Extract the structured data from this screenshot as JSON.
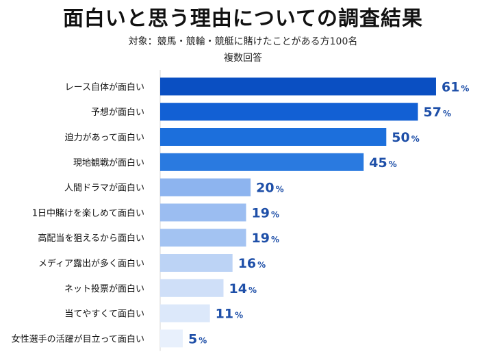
{
  "chart_data": {
    "type": "bar",
    "orientation": "horizontal",
    "title": "面白いと思う理由についての調査結果",
    "subtitle": "対象：競馬・競輪・競艇に賭けたことがある方100名",
    "note": "複数回答",
    "unit": "%",
    "categories": [
      "レース自体が面白い",
      "予想が面白い",
      "迫力があって面白い",
      "現地観戦が面白い",
      "人間ドラマが面白い",
      "1日中賭けを楽しめて面白い",
      "高配当を狙えるから面白い",
      "メディア露出が多く面白い",
      "ネット投票が面白い",
      "当てやすくて面白い",
      "女性選手の活躍が目立って面白い"
    ],
    "values": [
      61,
      57,
      50,
      45,
      20,
      19,
      19,
      16,
      14,
      11,
      5
    ],
    "bar_colors": [
      "#0a4fc2",
      "#1260d4",
      "#1c6fdc",
      "#2a7ae0",
      "#8db4ef",
      "#9bbdf1",
      "#a3c3f2",
      "#bcd3f5",
      "#cfdff8",
      "#dce8fa",
      "#e8f0fc"
    ],
    "label_color": "#1e4fa8",
    "xlim": [
      0,
      66
    ]
  }
}
